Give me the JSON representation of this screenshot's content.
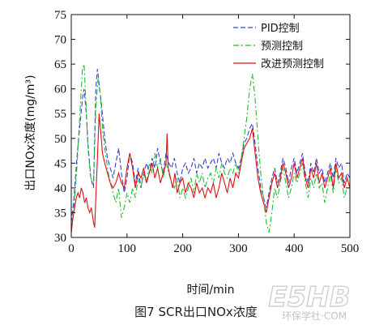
{
  "caption": "图7 SCR出口NOx浓度",
  "watermark": "E5HB",
  "watermark_sub": "环保学社·COM",
  "chart_data": {
    "type": "line",
    "title": "",
    "xlabel": "时间/min",
    "ylabel": "出口NOx浓度(mg/m³)",
    "xlim": [
      0,
      500
    ],
    "ylim": [
      30,
      75
    ],
    "xticks": [
      0,
      100,
      200,
      300,
      400,
      500
    ],
    "yticks": [
      30,
      35,
      40,
      45,
      50,
      55,
      60,
      65,
      70,
      75
    ],
    "legend_position": "top-right",
    "series": [
      {
        "name": "PID控制",
        "color": "#3344cc",
        "dash": "6,3",
        "points": [
          [
            0,
            33
          ],
          [
            5,
            38
          ],
          [
            10,
            46
          ],
          [
            15,
            52
          ],
          [
            20,
            58
          ],
          [
            23,
            60
          ],
          [
            27,
            55
          ],
          [
            30,
            49
          ],
          [
            35,
            42
          ],
          [
            40,
            40
          ],
          [
            44,
            60
          ],
          [
            47,
            64
          ],
          [
            50,
            61
          ],
          [
            55,
            56
          ],
          [
            60,
            50
          ],
          [
            65,
            46
          ],
          [
            70,
            44
          ],
          [
            75,
            42
          ],
          [
            80,
            45
          ],
          [
            85,
            48
          ],
          [
            90,
            43
          ],
          [
            95,
            39
          ],
          [
            100,
            42
          ],
          [
            105,
            47
          ],
          [
            110,
            45
          ],
          [
            115,
            41
          ],
          [
            120,
            44
          ],
          [
            125,
            40
          ],
          [
            130,
            43
          ],
          [
            135,
            45
          ],
          [
            140,
            43
          ],
          [
            145,
            46
          ],
          [
            150,
            44
          ],
          [
            155,
            48
          ],
          [
            160,
            45
          ],
          [
            165,
            43
          ],
          [
            170,
            47
          ],
          [
            175,
            45
          ],
          [
            180,
            44
          ],
          [
            185,
            46
          ],
          [
            190,
            43
          ],
          [
            195,
            41
          ],
          [
            200,
            44
          ],
          [
            205,
            45
          ],
          [
            210,
            43
          ],
          [
            215,
            44
          ],
          [
            220,
            46
          ],
          [
            225,
            43
          ],
          [
            230,
            45
          ],
          [
            235,
            44
          ],
          [
            240,
            46
          ],
          [
            245,
            44
          ],
          [
            250,
            45
          ],
          [
            255,
            46
          ],
          [
            260,
            44
          ],
          [
            265,
            47
          ],
          [
            270,
            45
          ],
          [
            275,
            44
          ],
          [
            280,
            46
          ],
          [
            285,
            45
          ],
          [
            290,
            47
          ],
          [
            295,
            45
          ],
          [
            300,
            44
          ],
          [
            305,
            46
          ],
          [
            310,
            49
          ],
          [
            315,
            50
          ],
          [
            320,
            52
          ],
          [
            325,
            53
          ],
          [
            330,
            49
          ],
          [
            335,
            44
          ],
          [
            340,
            40
          ],
          [
            345,
            38
          ],
          [
            350,
            36
          ],
          [
            355,
            39
          ],
          [
            360,
            42
          ],
          [
            365,
            44
          ],
          [
            370,
            41
          ],
          [
            375,
            43
          ],
          [
            380,
            46
          ],
          [
            385,
            44
          ],
          [
            390,
            41
          ],
          [
            395,
            44
          ],
          [
            400,
            46
          ],
          [
            405,
            43
          ],
          [
            410,
            45
          ],
          [
            415,
            47
          ],
          [
            420,
            43
          ],
          [
            425,
            41
          ],
          [
            430,
            45
          ],
          [
            435,
            43
          ],
          [
            440,
            46
          ],
          [
            445,
            43
          ],
          [
            450,
            44
          ],
          [
            455,
            41
          ],
          [
            460,
            43
          ],
          [
            465,
            45
          ],
          [
            470,
            42
          ],
          [
            475,
            46
          ],
          [
            480,
            44
          ],
          [
            485,
            45
          ],
          [
            490,
            41
          ],
          [
            495,
            43
          ],
          [
            500,
            42
          ]
        ]
      },
      {
        "name": "预测控制",
        "color": "#22bb33",
        "dash": "7,3,2,3",
        "points": [
          [
            0,
            31
          ],
          [
            5,
            36
          ],
          [
            10,
            44
          ],
          [
            15,
            54
          ],
          [
            18,
            60
          ],
          [
            20,
            64
          ],
          [
            23,
            65
          ],
          [
            26,
            58
          ],
          [
            30,
            48
          ],
          [
            35,
            42
          ],
          [
            40,
            41
          ],
          [
            44,
            56
          ],
          [
            48,
            62
          ],
          [
            52,
            59
          ],
          [
            56,
            52
          ],
          [
            60,
            48
          ],
          [
            65,
            44
          ],
          [
            70,
            41
          ],
          [
            75,
            39
          ],
          [
            80,
            37
          ],
          [
            85,
            40
          ],
          [
            90,
            34
          ],
          [
            95,
            36
          ],
          [
            100,
            39
          ],
          [
            105,
            37
          ],
          [
            110,
            40
          ],
          [
            115,
            38
          ],
          [
            120,
            42
          ],
          [
            125,
            40
          ],
          [
            130,
            43
          ],
          [
            135,
            41
          ],
          [
            140,
            45
          ],
          [
            145,
            43
          ],
          [
            150,
            47
          ],
          [
            155,
            44
          ],
          [
            160,
            46
          ],
          [
            165,
            42
          ],
          [
            170,
            45
          ],
          [
            175,
            43
          ],
          [
            180,
            41
          ],
          [
            185,
            40
          ],
          [
            190,
            42
          ],
          [
            195,
            38
          ],
          [
            200,
            40
          ],
          [
            205,
            38
          ],
          [
            210,
            40
          ],
          [
            215,
            42
          ],
          [
            220,
            39
          ],
          [
            225,
            43
          ],
          [
            230,
            41
          ],
          [
            235,
            43
          ],
          [
            240,
            40
          ],
          [
            245,
            42
          ],
          [
            250,
            43
          ],
          [
            255,
            41
          ],
          [
            260,
            44
          ],
          [
            265,
            42
          ],
          [
            270,
            45
          ],
          [
            275,
            43
          ],
          [
            280,
            42
          ],
          [
            285,
            44
          ],
          [
            290,
            43
          ],
          [
            295,
            45
          ],
          [
            300,
            43
          ],
          [
            305,
            46
          ],
          [
            310,
            50
          ],
          [
            315,
            54
          ],
          [
            320,
            60
          ],
          [
            325,
            63
          ],
          [
            330,
            58
          ],
          [
            335,
            50
          ],
          [
            340,
            43
          ],
          [
            345,
            38
          ],
          [
            350,
            33
          ],
          [
            355,
            31
          ],
          [
            360,
            35
          ],
          [
            365,
            40
          ],
          [
            370,
            38
          ],
          [
            375,
            41
          ],
          [
            380,
            44
          ],
          [
            385,
            41
          ],
          [
            390,
            38
          ],
          [
            395,
            40
          ],
          [
            400,
            43
          ],
          [
            405,
            41
          ],
          [
            410,
            43
          ],
          [
            415,
            45
          ],
          [
            420,
            41
          ],
          [
            425,
            38
          ],
          [
            430,
            42
          ],
          [
            435,
            40
          ],
          [
            440,
            43
          ],
          [
            445,
            40
          ],
          [
            450,
            41
          ],
          [
            455,
            37
          ],
          [
            460,
            40
          ],
          [
            465,
            43
          ],
          [
            470,
            39
          ],
          [
            475,
            44
          ],
          [
            480,
            41
          ],
          [
            485,
            42
          ],
          [
            490,
            38
          ],
          [
            495,
            40
          ],
          [
            500,
            40
          ]
        ]
      },
      {
        "name": "改进预测控制",
        "color": "#dd1111",
        "dash": "",
        "points": [
          [
            0,
            31
          ],
          [
            3,
            34
          ],
          [
            6,
            36
          ],
          [
            9,
            38
          ],
          [
            12,
            39
          ],
          [
            15,
            38
          ],
          [
            18,
            40
          ],
          [
            21,
            39
          ],
          [
            24,
            37
          ],
          [
            27,
            38
          ],
          [
            30,
            36
          ],
          [
            33,
            35
          ],
          [
            36,
            36
          ],
          [
            40,
            33
          ],
          [
            42,
            32
          ],
          [
            44,
            38
          ],
          [
            47,
            46
          ],
          [
            50,
            55
          ],
          [
            53,
            51
          ],
          [
            56,
            47
          ],
          [
            60,
            45
          ],
          [
            65,
            43
          ],
          [
            70,
            41
          ],
          [
            75,
            40
          ],
          [
            80,
            41
          ],
          [
            85,
            43
          ],
          [
            90,
            41
          ],
          [
            95,
            40
          ],
          [
            100,
            44
          ],
          [
            105,
            47
          ],
          [
            110,
            44
          ],
          [
            115,
            40
          ],
          [
            120,
            43
          ],
          [
            125,
            42
          ],
          [
            130,
            44
          ],
          [
            135,
            41
          ],
          [
            140,
            43
          ],
          [
            145,
            45
          ],
          [
            150,
            42
          ],
          [
            155,
            44
          ],
          [
            160,
            41
          ],
          [
            165,
            43
          ],
          [
            170,
            45
          ],
          [
            172,
            51
          ],
          [
            174,
            44
          ],
          [
            178,
            42
          ],
          [
            182,
            40
          ],
          [
            186,
            43
          ],
          [
            190,
            39
          ],
          [
            195,
            41
          ],
          [
            200,
            42
          ],
          [
            205,
            39
          ],
          [
            210,
            41
          ],
          [
            215,
            40
          ],
          [
            220,
            38
          ],
          [
            225,
            41
          ],
          [
            230,
            39
          ],
          [
            235,
            40
          ],
          [
            240,
            38
          ],
          [
            245,
            40
          ],
          [
            250,
            39
          ],
          [
            255,
            41
          ],
          [
            260,
            38
          ],
          [
            265,
            40
          ],
          [
            270,
            43
          ],
          [
            275,
            41
          ],
          [
            280,
            39
          ],
          [
            285,
            42
          ],
          [
            290,
            40
          ],
          [
            295,
            43
          ],
          [
            300,
            42
          ],
          [
            305,
            45
          ],
          [
            310,
            48
          ],
          [
            315,
            49
          ],
          [
            320,
            50
          ],
          [
            325,
            52
          ],
          [
            330,
            47
          ],
          [
            335,
            42
          ],
          [
            340,
            39
          ],
          [
            345,
            37
          ],
          [
            350,
            35
          ],
          [
            355,
            38
          ],
          [
            360,
            41
          ],
          [
            365,
            43
          ],
          [
            370,
            40
          ],
          [
            375,
            42
          ],
          [
            380,
            45
          ],
          [
            385,
            43
          ],
          [
            390,
            40
          ],
          [
            395,
            42
          ],
          [
            400,
            45
          ],
          [
            405,
            42
          ],
          [
            410,
            44
          ],
          [
            415,
            46
          ],
          [
            420,
            42
          ],
          [
            425,
            40
          ],
          [
            430,
            44
          ],
          [
            435,
            42
          ],
          [
            440,
            45
          ],
          [
            445,
            41
          ],
          [
            450,
            43
          ],
          [
            455,
            40
          ],
          [
            460,
            42
          ],
          [
            465,
            44
          ],
          [
            470,
            40
          ],
          [
            475,
            45
          ],
          [
            480,
            42
          ],
          [
            485,
            43
          ],
          [
            490,
            40
          ],
          [
            495,
            42
          ],
          [
            500,
            40
          ]
        ]
      }
    ]
  }
}
